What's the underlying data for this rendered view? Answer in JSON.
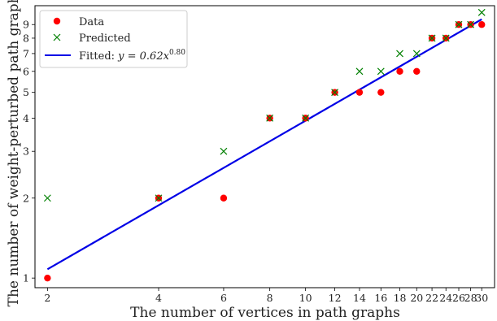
{
  "chart_data": {
    "type": "scatter",
    "xscale": "log",
    "yscale": "log",
    "xlabel": "The number of vertices in path graphs",
    "ylabel": "The number of weight-perturbed path graphs",
    "xlim": [
      1.85,
      32.5
    ],
    "ylim": [
      0.92,
      10.6
    ],
    "xticks": [
      2,
      4,
      6,
      8,
      10,
      12,
      14,
      16,
      18,
      20,
      22,
      24,
      26,
      28,
      30
    ],
    "yticks": [
      1,
      2,
      3,
      4,
      5,
      6,
      7,
      8,
      9
    ],
    "grid": false,
    "legend_position": "top-left",
    "series": [
      {
        "name": "Data",
        "marker": "circle",
        "color": "#ff0000",
        "x": [
          2,
          4,
          6,
          8,
          10,
          12,
          14,
          16,
          18,
          20,
          22,
          24,
          26,
          28,
          30
        ],
        "y": [
          1,
          2,
          2,
          4,
          4,
          5,
          5,
          5,
          6,
          6,
          8,
          8,
          9,
          9,
          9
        ]
      },
      {
        "name": "Predicted",
        "marker": "x",
        "color": "#008000",
        "x": [
          2,
          4,
          6,
          8,
          10,
          12,
          14,
          16,
          18,
          20,
          22,
          24,
          26,
          28,
          30
        ],
        "y": [
          2,
          2,
          3,
          4,
          4,
          5,
          6,
          6,
          7,
          7,
          8,
          8,
          9,
          9,
          10
        ]
      },
      {
        "name_prefix": "Fitted: ",
        "name_formula": "y = 0.62x",
        "name_exponent": "0.80",
        "marker": "line",
        "color": "#0000e6",
        "fit_coefficient": 0.62,
        "fit_exponent": 0.8,
        "x_range": [
          2,
          30
        ]
      }
    ]
  }
}
